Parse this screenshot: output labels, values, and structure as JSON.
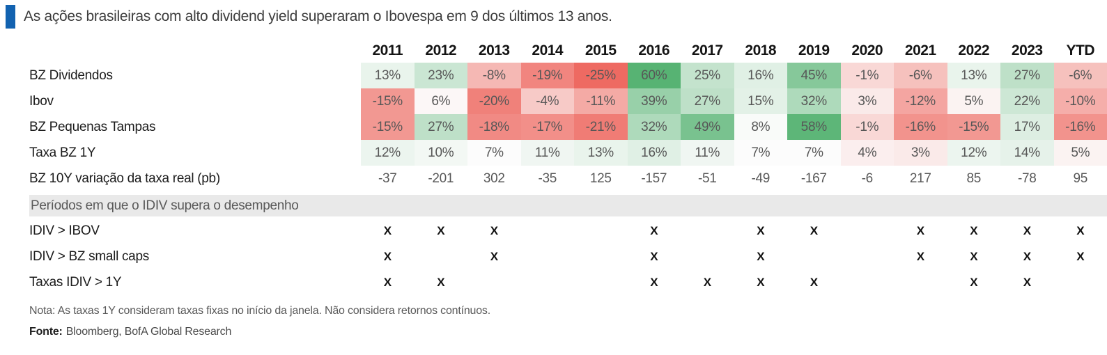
{
  "title": "As ações brasileiras com alto dividend yield superaram o Ibovespa em 9 dos últimos 13 anos.",
  "accent_color": "#1262b0",
  "chart_data": {
    "type": "heatmap",
    "columns": [
      "2011",
      "2012",
      "2013",
      "2014",
      "2015",
      "2016",
      "2017",
      "2018",
      "2019",
      "2020",
      "2021",
      "2022",
      "2023",
      "YTD"
    ],
    "rows": [
      {
        "label": "BZ Dividendos",
        "format": "percent",
        "heatmap": true,
        "values": [
          13,
          23,
          -8,
          -19,
          -25,
          60,
          25,
          16,
          45,
          -1,
          -6,
          13,
          27,
          -6
        ]
      },
      {
        "label": "Ibov",
        "format": "percent",
        "heatmap": true,
        "values": [
          -15,
          6,
          -20,
          -4,
          -11,
          39,
          27,
          15,
          32,
          3,
          -12,
          5,
          22,
          -10
        ]
      },
      {
        "label": "BZ Pequenas Tampas",
        "format": "percent",
        "heatmap": true,
        "values": [
          -15,
          27,
          -18,
          -17,
          -21,
          32,
          49,
          8,
          58,
          -1,
          -16,
          -15,
          17,
          -16
        ]
      },
      {
        "label": "Taxa BZ 1Y",
        "format": "percent",
        "heatmap": true,
        "values": [
          12,
          10,
          7,
          11,
          13,
          16,
          11,
          7,
          7,
          4,
          3,
          12,
          14,
          5
        ]
      },
      {
        "label": "BZ 10Y variação da taxa real (pb)",
        "format": "number",
        "heatmap": false,
        "values": [
          -37,
          -201,
          302,
          -35,
          125,
          -157,
          -51,
          -49,
          -167,
          -6,
          217,
          85,
          -78,
          95
        ]
      }
    ],
    "section_banner": "Períodos em que o IDIV supera o desempenho",
    "mark_rows": [
      {
        "label": "IDIV > IBOV",
        "marks": [
          "X",
          "X",
          "X",
          "",
          "",
          "X",
          "",
          "X",
          "X",
          "",
          "X",
          "X",
          "X",
          "X"
        ]
      },
      {
        "label": "IDIV > BZ small caps",
        "marks": [
          "X",
          "",
          "X",
          "",
          "",
          "X",
          "",
          "X",
          "",
          "",
          "X",
          "X",
          "X",
          "X"
        ]
      },
      {
        "label": "Taxas IDIV > 1Y",
        "marks": [
          "X",
          "X",
          "",
          "",
          "",
          "X",
          "X",
          "X",
          "X",
          "",
          "",
          "X",
          "X",
          ""
        ]
      }
    ],
    "color_scale": {
      "min": -25,
      "mid": 7,
      "max": 60,
      "negative_color": "#ee6a62",
      "positive_color": "#57b373",
      "neutral_color": "#fcfcfc"
    }
  },
  "footnotes": {
    "nota": "Nota: As taxas 1Y consideram taxas fixas no início da janela. Não considera retornos contínuos.",
    "fonte_label": "Fonte:",
    "fonte_value": "Bloomberg, BofA Global Research"
  }
}
